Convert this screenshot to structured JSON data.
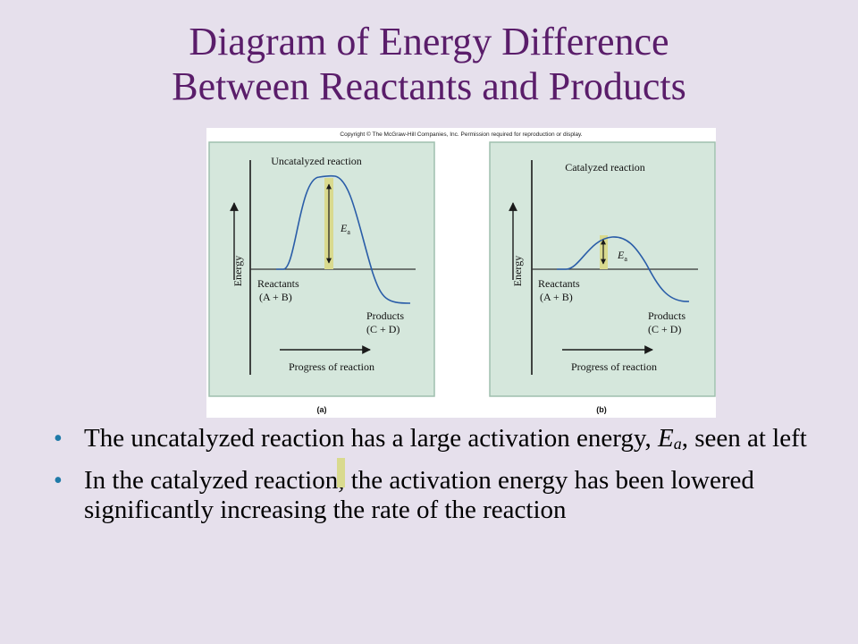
{
  "title": {
    "line1": "Diagram of Energy Difference",
    "line2": "Between Reactants and Products"
  },
  "figure": {
    "copyright": "Copyright © The McGraw-Hill Companies, Inc. Permission required for reproduction or display.",
    "panels": [
      {
        "heading": "Uncatalyzed reaction",
        "ea_label": "E",
        "ea_sub": "a",
        "y_axis": "Energy",
        "reactants": "Reactants",
        "reactants_formula": "(A + B)",
        "products": "Products",
        "products_formula": "(C + D)",
        "x_axis": "Progress of reaction",
        "caption": "(a)"
      },
      {
        "heading": "Catalyzed reaction",
        "ea_label": "E",
        "ea_sub": "a",
        "y_axis": "Energy",
        "reactants": "Reactants",
        "reactants_formula": "(A + B)",
        "products": "Products",
        "products_formula": "(C + D)",
        "x_axis": "Progress of reaction",
        "caption": "(b)"
      }
    ],
    "colors": {
      "panel_bg": "#d5e7dc",
      "curve": "#2a5da8",
      "ea_bar": "#d9da8e"
    }
  },
  "bullets": [
    {
      "text_a": "The uncatalyzed reaction has a large activation energy,",
      "ea_main": "E",
      "ea_sub": "a",
      "text_b": ",  seen at left"
    },
    {
      "text": "In the catalyzed reaction, the activation energy has been lowered significantly increasing the rate of the reaction"
    }
  ]
}
